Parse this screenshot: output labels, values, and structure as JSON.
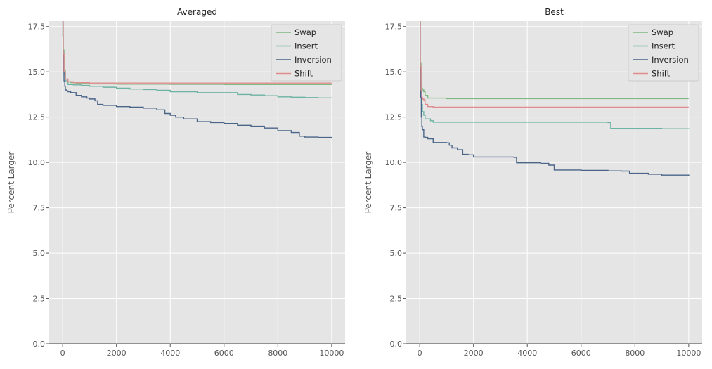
{
  "chart_data": [
    {
      "type": "line",
      "title": "Averaged",
      "xlabel": "",
      "ylabel": "Percent Larger",
      "xlim": [
        -500,
        10500
      ],
      "ylim": [
        0,
        17.8
      ],
      "xticks": [
        0,
        2000,
        4000,
        6000,
        8000,
        10000
      ],
      "xtick_labels": [
        "0",
        "2000",
        "4000",
        "6000",
        "8000",
        "10000"
      ],
      "yticks": [
        0,
        2.5,
        5,
        7.5,
        10,
        12.5,
        15,
        17.5
      ],
      "ytick_labels": [
        "0.0",
        "2.5",
        "5.0",
        "7.5",
        "10.0",
        "12.5",
        "15.0",
        "17.5"
      ],
      "grid": true,
      "legend": "top-right",
      "series": [
        {
          "name": "Swap",
          "color": "#7fba84",
          "x": [
            0,
            20,
            50,
            100,
            200,
            300,
            500,
            1000,
            2000,
            4000,
            6000,
            8000,
            10000
          ],
          "y": [
            18.5,
            16.2,
            15.1,
            14.6,
            14.45,
            14.4,
            14.35,
            14.33,
            14.32,
            14.31,
            14.3,
            14.3,
            14.3
          ]
        },
        {
          "name": "Insert",
          "color": "#6db3a3",
          "x": [
            0,
            20,
            50,
            100,
            200,
            400,
            700,
            1000,
            1500,
            2000,
            2500,
            3000,
            3500,
            4000,
            5000,
            6000,
            6500,
            7000,
            7500,
            8000,
            8500,
            9000,
            9500,
            10000
          ],
          "y": [
            18.5,
            15.8,
            14.9,
            14.5,
            14.3,
            14.28,
            14.25,
            14.2,
            14.15,
            14.1,
            14.05,
            14.02,
            13.98,
            13.9,
            13.85,
            13.85,
            13.75,
            13.72,
            13.68,
            13.62,
            13.6,
            13.58,
            13.56,
            13.55
          ]
        },
        {
          "name": "Inversion",
          "color": "#4a6588",
          "x": [
            0,
            10,
            20,
            30,
            50,
            80,
            100,
            150,
            200,
            300,
            500,
            700,
            900,
            1000,
            1200,
            1300,
            1500,
            2000,
            2500,
            3000,
            3500,
            3800,
            4000,
            4200,
            4500,
            5000,
            5500,
            6000,
            6500,
            7000,
            7500,
            8000,
            8500,
            8800,
            9000,
            9500,
            10000
          ],
          "y": [
            18.5,
            17.0,
            15.8,
            15.0,
            14.5,
            14.2,
            14.0,
            13.95,
            13.9,
            13.85,
            13.7,
            13.62,
            13.55,
            13.5,
            13.4,
            13.2,
            13.15,
            13.08,
            13.05,
            13.0,
            12.9,
            12.7,
            12.6,
            12.5,
            12.4,
            12.25,
            12.2,
            12.15,
            12.05,
            12.0,
            11.9,
            11.75,
            11.65,
            11.45,
            11.4,
            11.38,
            11.32
          ]
        },
        {
          "name": "Shift",
          "color": "#e08c8c",
          "x": [
            0,
            20,
            50,
            100,
            200,
            400,
            1000,
            4000,
            10000
          ],
          "y": [
            18.5,
            16.0,
            15.0,
            14.6,
            14.45,
            14.4,
            14.38,
            14.38,
            14.38
          ]
        }
      ]
    },
    {
      "type": "line",
      "title": "Best",
      "xlabel": "",
      "ylabel": "Percent Larger",
      "xlim": [
        -500,
        10500
      ],
      "ylim": [
        0,
        17.8
      ],
      "xticks": [
        0,
        2000,
        4000,
        6000,
        8000,
        10000
      ],
      "xtick_labels": [
        "0",
        "2000",
        "4000",
        "6000",
        "8000",
        "10000"
      ],
      "yticks": [
        0,
        2.5,
        5,
        7.5,
        10,
        12.5,
        15,
        17.5
      ],
      "ytick_labels": [
        "0.0",
        "2.5",
        "5.0",
        "7.5",
        "10.0",
        "12.5",
        "15.0",
        "17.5"
      ],
      "grid": true,
      "legend": "top-right",
      "series": [
        {
          "name": "Swap",
          "color": "#7fba84",
          "x": [
            0,
            20,
            50,
            80,
            100,
            150,
            200,
            300,
            1000,
            10000
          ],
          "y": [
            18.5,
            15.5,
            14.5,
            14.1,
            14.0,
            13.9,
            13.7,
            13.55,
            13.52,
            13.52
          ]
        },
        {
          "name": "Insert",
          "color": "#6db3a3",
          "x": [
            0,
            20,
            50,
            80,
            100,
            150,
            200,
            400,
            500,
            7000,
            7100,
            9000,
            10000
          ],
          "y": [
            18.5,
            15.0,
            13.8,
            13.2,
            12.8,
            12.6,
            12.4,
            12.3,
            12.22,
            12.2,
            11.88,
            11.86,
            11.85
          ]
        },
        {
          "name": "Inversion",
          "color": "#4a6588",
          "x": [
            0,
            20,
            40,
            60,
            80,
            100,
            150,
            200,
            300,
            500,
            1000,
            1100,
            1200,
            1400,
            1600,
            1800,
            2000,
            3500,
            3600,
            4500,
            4800,
            5000,
            6000,
            7000,
            7500,
            7800,
            8500,
            9000,
            10000
          ],
          "y": [
            18.5,
            15.2,
            13.6,
            12.5,
            12.0,
            11.8,
            11.4,
            11.38,
            11.3,
            11.1,
            11.08,
            10.95,
            10.8,
            10.7,
            10.45,
            10.42,
            10.3,
            10.28,
            9.98,
            9.95,
            9.85,
            9.58,
            9.56,
            9.53,
            9.52,
            9.4,
            9.35,
            9.3,
            9.25
          ]
        },
        {
          "name": "Shift",
          "color": "#e08c8c",
          "x": [
            0,
            20,
            50,
            80,
            100,
            150,
            200,
            300,
            500,
            10000
          ],
          "y": [
            18.5,
            15.3,
            14.0,
            13.6,
            13.5,
            13.45,
            13.2,
            13.08,
            13.05,
            13.05
          ]
        }
      ]
    }
  ]
}
